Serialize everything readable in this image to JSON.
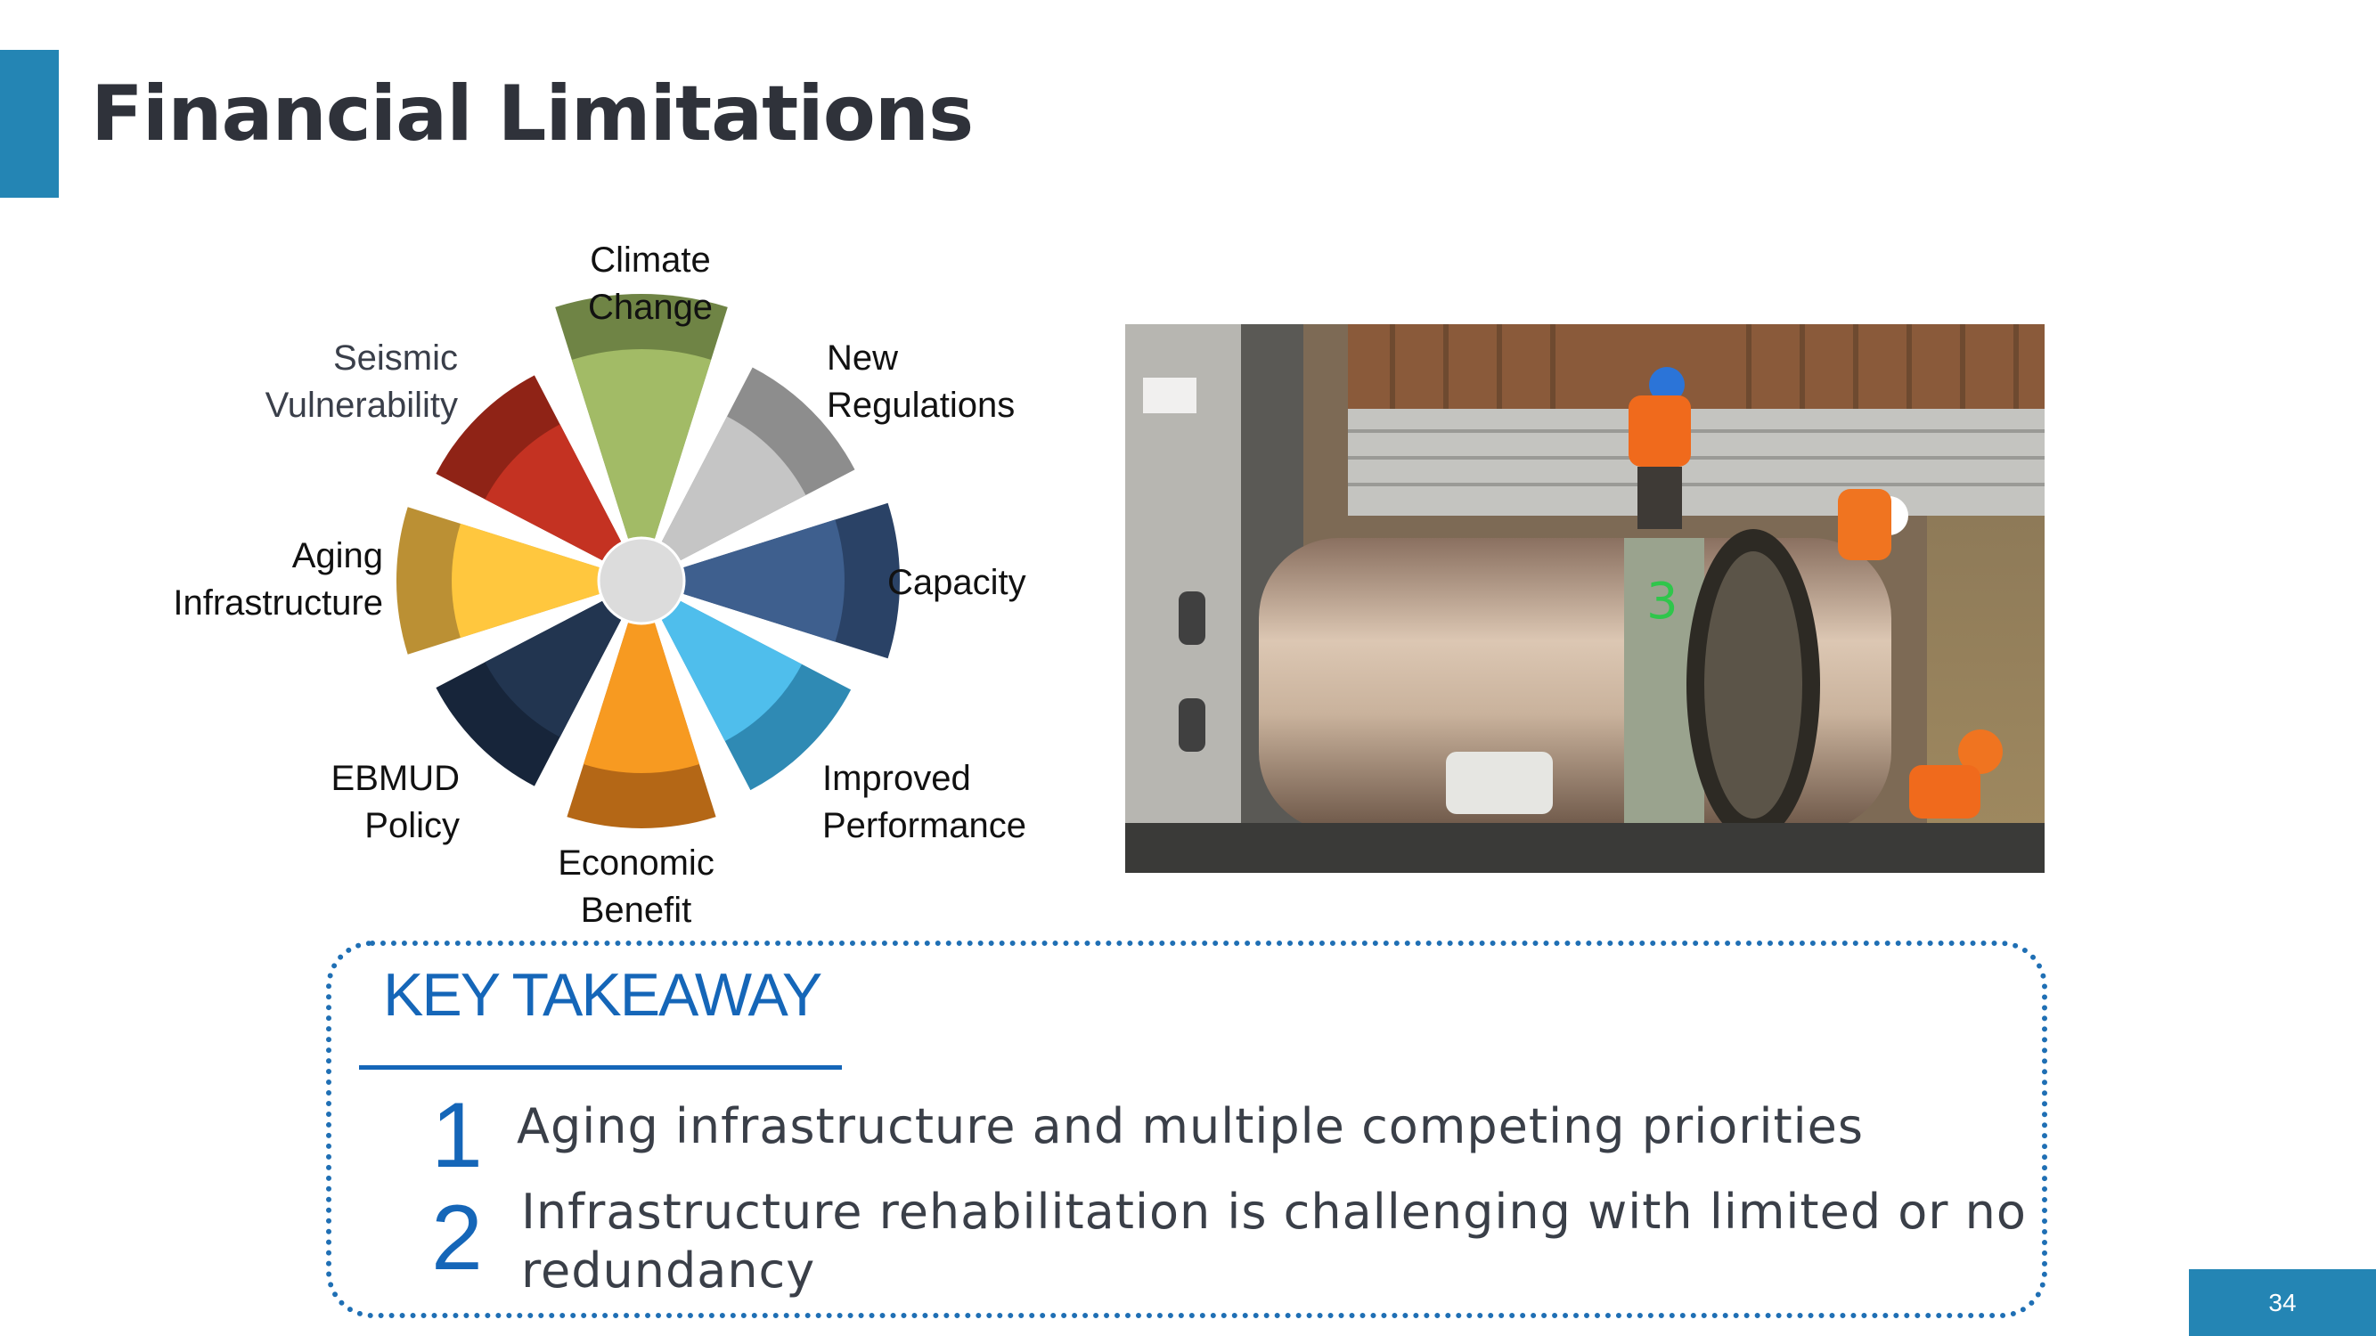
{
  "slide": {
    "title": "Financial Limitations",
    "page_number": "34"
  },
  "wheel": {
    "segments": [
      {
        "label_lines": [
          "Climate",
          "Change"
        ],
        "color": "#a2bb66",
        "dark": "#6f8445"
      },
      {
        "label_lines": [
          "New",
          "Regulations"
        ],
        "color": "#c5c5c5",
        "dark": "#8d8d8d"
      },
      {
        "label_lines": [
          "Capacity"
        ],
        "color": "#3e5f8e",
        "dark": "#2a4266"
      },
      {
        "label_lines": [
          "Improved",
          "Performance"
        ],
        "color": "#4fbeec",
        "dark": "#2f8ab4"
      },
      {
        "label_lines": [
          "Economic",
          "Benefit"
        ],
        "color": "#f79a21",
        "dark": "#b46716"
      },
      {
        "label_lines": [
          "EBMUD",
          "Policy"
        ],
        "color": "#223550",
        "dark": "#17253a"
      },
      {
        "label_lines": [
          "Aging",
          "Infrastructure"
        ],
        "color": "#ffc73e",
        "dark": "#bb9034"
      },
      {
        "label_lines": [
          "Seismic",
          "Vulnerability"
        ],
        "color": "#c43222",
        "dark": "#8f2316"
      }
    ]
  },
  "key_takeaway": {
    "heading": "KEY TAKEAWAY",
    "items": [
      {
        "number": "1",
        "text": "Aging infrastructure and multiple competing priorities"
      },
      {
        "number": "2",
        "text_lines": [
          "Infrastructure rehabilitation is challenging with limited or no",
          "redundancy"
        ]
      }
    ]
  },
  "colors": {
    "accent": "#2485b4",
    "takeaway_blue": "#1566b8"
  }
}
